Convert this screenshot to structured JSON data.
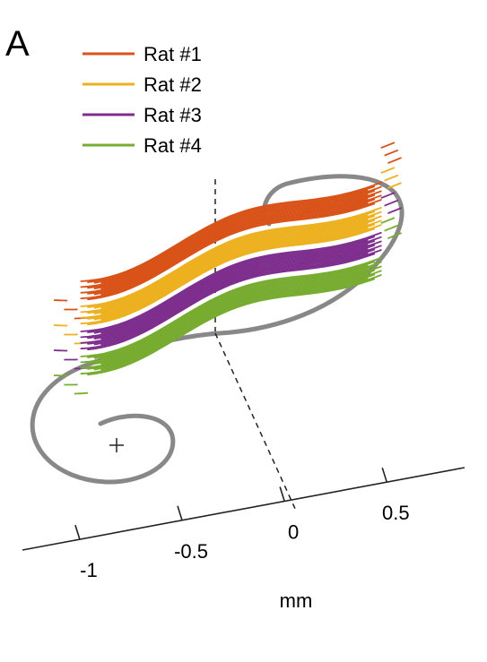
{
  "panel_label": "A",
  "chart_data": {
    "type": "line",
    "xlabel": "mm",
    "x_ticks": [
      -1,
      -0.5,
      0,
      0.5
    ],
    "x_tick_labels": [
      "-1",
      "-0.5",
      "0",
      "0.5"
    ],
    "grid": false,
    "legend_position": "top-left",
    "series": [
      {
        "name": "Rat #1",
        "color": "#D95319",
        "offset": 0.0
      },
      {
        "name": "Rat #2",
        "color": "#EDB120",
        "offset": 1.0
      },
      {
        "name": "Rat #3",
        "color": "#7E2F8E",
        "offset": 2.0
      },
      {
        "name": "Rat #4",
        "color": "#77AC30",
        "offset": 3.0
      }
    ],
    "reference_curve_color": "#888888"
  }
}
